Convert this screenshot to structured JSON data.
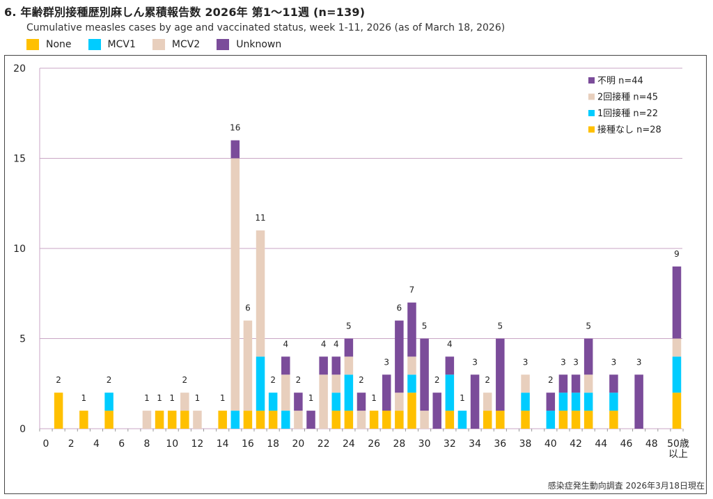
{
  "header": {
    "title": "6. 年齢群別接種歴別麻しん累積報告数  2026年 第1～11週 (n=139)",
    "subtitle": "Cumulative measles cases by age and vaccinated status, week 1-11, 2026 (as of March 18, 2026)"
  },
  "top_legend": [
    {
      "label": "None",
      "color": "#FFC000"
    },
    {
      "label": "MCV1",
      "color": "#00CCFF"
    },
    {
      "label": "MCV2",
      "color": "#E8CFBD"
    },
    {
      "label": "Unknown",
      "color": "#7B4C9A"
    }
  ],
  "footer": {
    "source": "感染症発生動向調査 2026年3月18日現在"
  },
  "chart_data": {
    "type": "bar",
    "stacked": true,
    "title": "6. 年齢群別接種歴別麻しん累積報告数  2026年 第1～11週 (n=139)",
    "subtitle": "Cumulative measles cases by age and vaccinated status, week 1-11, 2026 (as of March 18, 2026)",
    "xlabel": "",
    "ylabel": "",
    "ylim": [
      0,
      20
    ],
    "yticks": [
      0,
      5,
      10,
      15,
      20
    ],
    "xticks": [
      "0",
      "2",
      "4",
      "6",
      "8",
      "10",
      "12",
      "14",
      "16",
      "18",
      "20",
      "22",
      "24",
      "26",
      "28",
      "30",
      "32",
      "34",
      "36",
      "38",
      "40",
      "42",
      "44",
      "46",
      "48",
      "50歳\n以上"
    ],
    "grid": "horizontal",
    "legend_placement": "top-right",
    "legend": [
      {
        "label": "不明 n=44",
        "series": "Unknown",
        "color": "#7B4C9A"
      },
      {
        "label": "2回接種 n=45",
        "series": "MCV2",
        "color": "#E8CFBD"
      },
      {
        "label": "1回接種 n=22",
        "series": "MCV1",
        "color": "#00CCFF"
      },
      {
        "label": "接種なし n=28",
        "series": "None",
        "color": "#FFC000"
      }
    ],
    "categories": [
      0,
      1,
      2,
      3,
      4,
      5,
      6,
      7,
      8,
      9,
      10,
      11,
      12,
      13,
      14,
      15,
      16,
      17,
      18,
      19,
      20,
      21,
      22,
      23,
      24,
      25,
      26,
      27,
      28,
      29,
      30,
      31,
      32,
      33,
      34,
      35,
      36,
      37,
      38,
      39,
      40,
      41,
      42,
      43,
      44,
      45,
      46,
      47,
      48,
      49,
      "50+"
    ],
    "series": [
      {
        "name": "None",
        "color": "#FFC000",
        "values": [
          0,
          2,
          0,
          1,
          0,
          1,
          0,
          0,
          0,
          1,
          1,
          1,
          0,
          0,
          1,
          0,
          1,
          1,
          1,
          0,
          0,
          0,
          0,
          1,
          1,
          0,
          1,
          1,
          1,
          2,
          0,
          0,
          1,
          0,
          0,
          1,
          1,
          0,
          1,
          0,
          0,
          1,
          1,
          1,
          0,
          1,
          0,
          0,
          0,
          0,
          2
        ]
      },
      {
        "name": "MCV1",
        "color": "#00CCFF",
        "values": [
          0,
          0,
          0,
          0,
          0,
          1,
          0,
          0,
          0,
          0,
          0,
          0,
          0,
          0,
          0,
          1,
          0,
          3,
          1,
          1,
          0,
          0,
          0,
          1,
          2,
          0,
          0,
          0,
          0,
          1,
          0,
          0,
          2,
          1,
          0,
          0,
          0,
          0,
          1,
          0,
          1,
          1,
          1,
          1,
          0,
          1,
          0,
          0,
          0,
          0,
          2
        ]
      },
      {
        "name": "MCV2",
        "color": "#E8CFBD",
        "values": [
          0,
          0,
          0,
          0,
          0,
          0,
          0,
          0,
          1,
          0,
          0,
          1,
          1,
          0,
          0,
          14,
          5,
          7,
          0,
          2,
          1,
          0,
          3,
          1,
          1,
          1,
          0,
          0,
          1,
          1,
          1,
          0,
          0,
          0,
          0,
          1,
          0,
          0,
          1,
          0,
          0,
          0,
          0,
          1,
          0,
          0,
          0,
          0,
          0,
          0,
          1
        ]
      },
      {
        "name": "Unknown",
        "color": "#7B4C9A",
        "values": [
          0,
          0,
          0,
          0,
          0,
          0,
          0,
          0,
          0,
          0,
          0,
          0,
          0,
          0,
          0,
          1,
          0,
          0,
          0,
          1,
          1,
          1,
          1,
          1,
          1,
          1,
          0,
          2,
          4,
          3,
          4,
          2,
          1,
          0,
          3,
          0,
          4,
          0,
          0,
          0,
          1,
          1,
          1,
          2,
          0,
          1,
          0,
          3,
          0,
          0,
          4
        ]
      }
    ],
    "totals": [
      0,
      2,
      0,
      1,
      0,
      2,
      0,
      0,
      1,
      1,
      1,
      2,
      1,
      0,
      1,
      16,
      6,
      11,
      2,
      4,
      2,
      1,
      4,
      4,
      5,
      2,
      1,
      3,
      6,
      7,
      5,
      2,
      4,
      1,
      3,
      2,
      5,
      0,
      3,
      0,
      2,
      3,
      3,
      5,
      0,
      3,
      0,
      3,
      0,
      0,
      9
    ]
  }
}
